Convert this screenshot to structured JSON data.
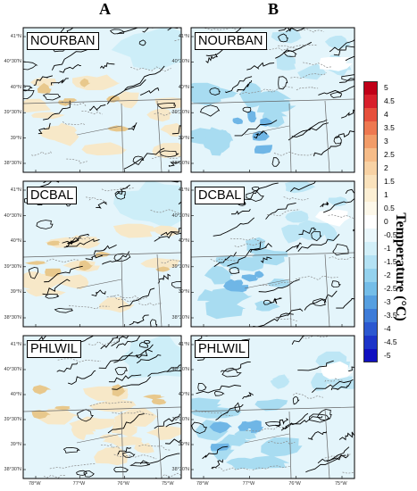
{
  "columns": [
    "A",
    "B"
  ],
  "panels": {
    "col_a": [
      "NOURBAN",
      "DCBAL",
      "PHLWIL"
    ],
    "col_b": [
      "NOURBAN",
      "DCBAL",
      "PHLWIL"
    ]
  },
  "lat_labels": [
    "41°N",
    "40°30'N",
    "40°N",
    "39°30'N",
    "39°N",
    "38°30'N"
  ],
  "lon_labels": [
    "78°W",
    "77°W",
    "76°W",
    "75°W"
  ],
  "colorbar": {
    "title": "Temperature (°C)",
    "ticks": [
      "5",
      "4.5",
      "4",
      "3.5",
      "3",
      "2.5",
      "2",
      "1.5",
      "1",
      "0.5",
      "0",
      "-0.5",
      "-1",
      "-1.5",
      "-2",
      "-2.5",
      "-3",
      "-3.5",
      "-4",
      "-4.5",
      "-5"
    ],
    "colors": [
      "#c00018",
      "#d8202c",
      "#e6503c",
      "#ee7850",
      "#f29c68",
      "#f6bc88",
      "#f8d2a4",
      "#fae2bc",
      "#fcefd4",
      "#fdf8ea",
      "#ffffff",
      "#eaf7fb",
      "#d2eff8",
      "#b4e2f4",
      "#94d2ee",
      "#74bde8",
      "#569fe0",
      "#3e7cd8",
      "#2c58d0",
      "#1c34c8",
      "#1010c0"
    ]
  }
}
